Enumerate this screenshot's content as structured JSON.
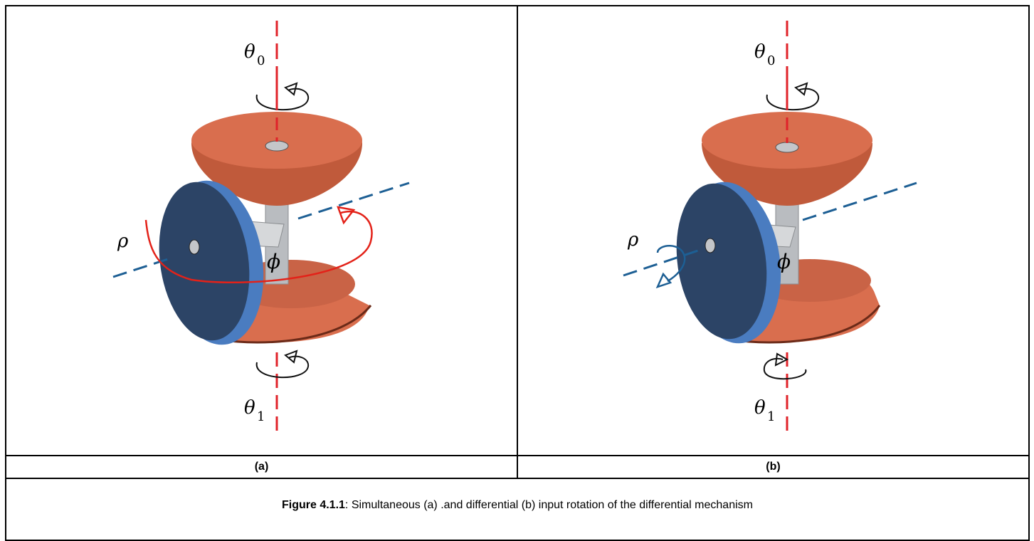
{
  "panels": [
    {
      "id": "a",
      "label": "(a)",
      "symbols": {
        "top_axis": "θ",
        "top_sub": "0",
        "bottom_axis": "θ",
        "bottom_sub": "1",
        "side_axis": "ρ",
        "center_axis": "ϕ"
      },
      "rotation_arrow_color": "#e32219"
    },
    {
      "id": "b",
      "label": "(b)",
      "symbols": {
        "top_axis": "θ",
        "top_sub": "0",
        "bottom_axis": "θ",
        "bottom_sub": "1",
        "side_axis": "ρ",
        "center_axis": "ϕ"
      },
      "rotation_arrow_color": "#1d5f94"
    }
  ],
  "caption": {
    "bold": "Figure 4.1.1",
    "text": ": Simultaneous (a) .and differential (b) input rotation of the differential mechanism"
  },
  "colors": {
    "gear_orange": "#d96e4e",
    "gear_orange_dark": "#a44a30",
    "gear_blue": "#2c4466",
    "gear_blue_edge": "#4a7cc0",
    "axis_red": "#e0232a",
    "axis_blue": "#1d5f94",
    "shaft_gray": "#b9bcc0"
  }
}
